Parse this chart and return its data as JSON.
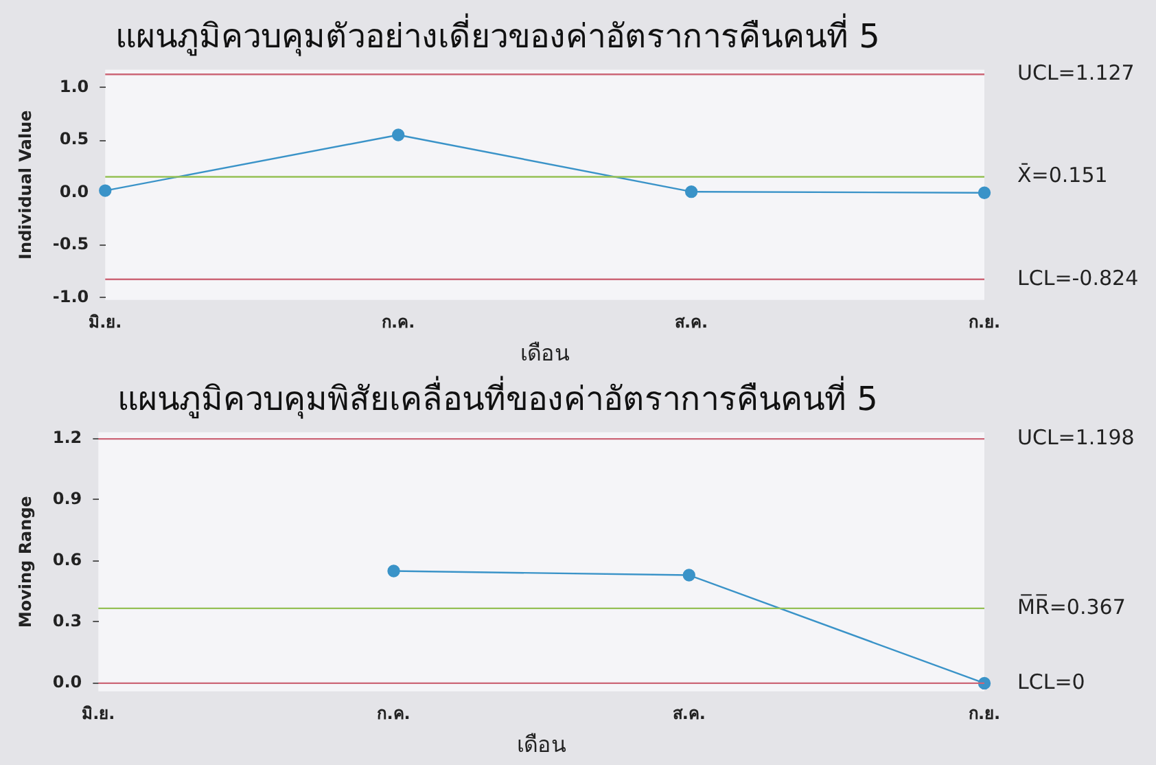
{
  "chart_data": [
    {
      "type": "line",
      "title": "แผนภูมิควบคุมตัวอย่างเดี่ยวของค่าอัตราการคืนคนที่ 5",
      "xlabel": "เดือน",
      "ylabel": "Individual Value",
      "categories": [
        "มิ.ย.",
        "ก.ค.",
        "ส.ค.",
        "ก.ย."
      ],
      "series": [
        {
          "color": "#3a93c8",
          "values": [
            0.02,
            0.55,
            0.01,
            0.0
          ]
        }
      ],
      "ylim": [
        -1.02,
        1.17
      ],
      "yticks": [
        {
          "value": -1,
          "label": "-1.0"
        },
        -0.5,
        {
          "value": 0,
          "label": "0.0"
        },
        0.5,
        {
          "value": 1,
          "label": "1.0"
        }
      ],
      "grid": false,
      "legend": false,
      "marker": "circle",
      "ref_lines": [
        {
          "axis": "y",
          "value": 1.127,
          "label": "UCL=1.127",
          "color": "#cc6677"
        },
        {
          "axis": "y",
          "value": 0.151,
          "label": "X̄=0.151",
          "color": "#95c055"
        },
        {
          "axis": "y",
          "value": -0.824,
          "label": "LCL=-0.824",
          "color": "#cc6677"
        }
      ]
    },
    {
      "type": "line",
      "title": "แผนภูมิควบคุมพิสัยเคลื่อนที่ของค่าอัตราการคืนคนที่ 5",
      "xlabel": "เดือน",
      "ylabel": "Moving Range",
      "categories": [
        "มิ.ย.",
        "ก.ค.",
        "ส.ค.",
        "ก.ย."
      ],
      "series": [
        {
          "color": "#3a93c8",
          "values": [
            null,
            0.55,
            0.53,
            0.0
          ]
        }
      ],
      "ylim": [
        -0.04,
        1.23
      ],
      "yticks": [
        {
          "value": 0,
          "label": "0.0"
        },
        0.3,
        0.6,
        0.9,
        1.2
      ],
      "grid": false,
      "legend": false,
      "marker": "circle",
      "ref_lines": [
        {
          "axis": "y",
          "value": 1.198,
          "label": "UCL=1.198",
          "color": "#cc6677"
        },
        {
          "axis": "y",
          "value": 0.367,
          "label": "M̅R̅=0.367",
          "color": "#95c055"
        },
        {
          "axis": "y",
          "value": 0,
          "label": "LCL=0",
          "color": "#cc6677"
        }
      ]
    }
  ]
}
